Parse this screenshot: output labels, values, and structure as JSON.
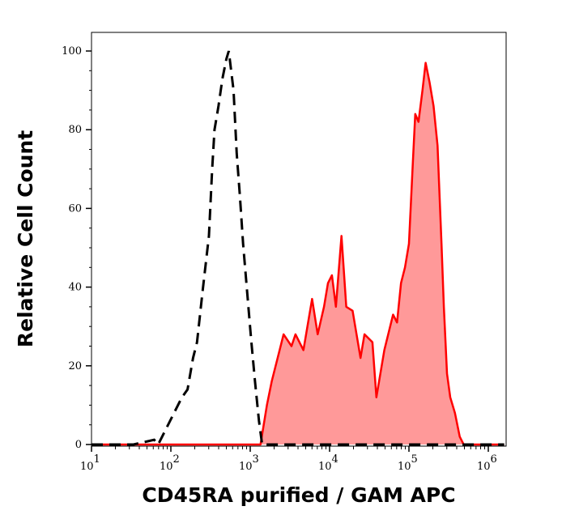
{
  "chart_data": {
    "type": "area",
    "title": "",
    "xlabel": "CD45RA purified / GAM APC",
    "ylabel": "Relative Cell Count",
    "x_scale": "log",
    "xlim_log10": [
      1,
      6.2
    ],
    "ylim": [
      0,
      105
    ],
    "x_ticks": [
      {
        "base": "10",
        "exp": "1"
      },
      {
        "base": "10",
        "exp": "2"
      },
      {
        "base": "10",
        "exp": "3"
      },
      {
        "base": "10",
        "exp": "4"
      },
      {
        "base": "10",
        "exp": "5"
      },
      {
        "base": "10",
        "exp": "6"
      }
    ],
    "y_ticks": [
      "0",
      "20",
      "40",
      "60",
      "80",
      "100"
    ],
    "grid": false,
    "series": [
      {
        "style": "dashed black line (isotype control)",
        "color": "#000000",
        "log10_x": [
          1.0,
          1.53,
          1.79,
          1.84,
          1.94,
          2.04,
          2.14,
          2.21,
          2.28,
          2.33,
          2.4,
          2.48,
          2.52,
          2.55,
          2.6,
          2.65,
          2.7,
          2.73,
          2.79,
          2.83,
          2.87,
          2.91,
          2.96,
          3.01,
          3.06,
          3.11,
          3.15,
          6.2
        ],
        "values": [
          0,
          0,
          1.2,
          0,
          4,
          8,
          12,
          14,
          22,
          26,
          39,
          53,
          70,
          80,
          86,
          93,
          98,
          100,
          90,
          74,
          63,
          51,
          39,
          27,
          16,
          6,
          0,
          0
        ]
      },
      {
        "style": "filled red area",
        "color": "#ff0000",
        "fill": "#ff9999",
        "log10_x": [
          1.0,
          3.13,
          3.21,
          3.27,
          3.37,
          3.42,
          3.52,
          3.57,
          3.67,
          3.78,
          3.85,
          3.93,
          3.98,
          4.03,
          4.08,
          4.15,
          4.21,
          4.29,
          4.39,
          4.44,
          4.54,
          4.59,
          4.69,
          4.8,
          4.85,
          4.9,
          4.95,
          5.0,
          5.05,
          5.08,
          5.12,
          5.17,
          5.21,
          5.26,
          5.31,
          5.36,
          5.41,
          5.44,
          5.48,
          5.52,
          5.58,
          5.64,
          5.69,
          6.2
        ],
        "values": [
          0,
          0,
          10,
          16,
          24,
          28,
          25,
          28,
          24,
          37,
          28,
          35,
          41,
          43,
          35,
          53,
          35,
          34,
          22,
          28,
          26,
          12,
          24,
          33,
          31,
          41,
          45,
          51,
          72,
          84,
          82,
          90,
          97,
          92,
          86,
          76,
          51,
          35,
          18,
          12,
          8,
          2,
          0,
          0
        ]
      }
    ]
  }
}
